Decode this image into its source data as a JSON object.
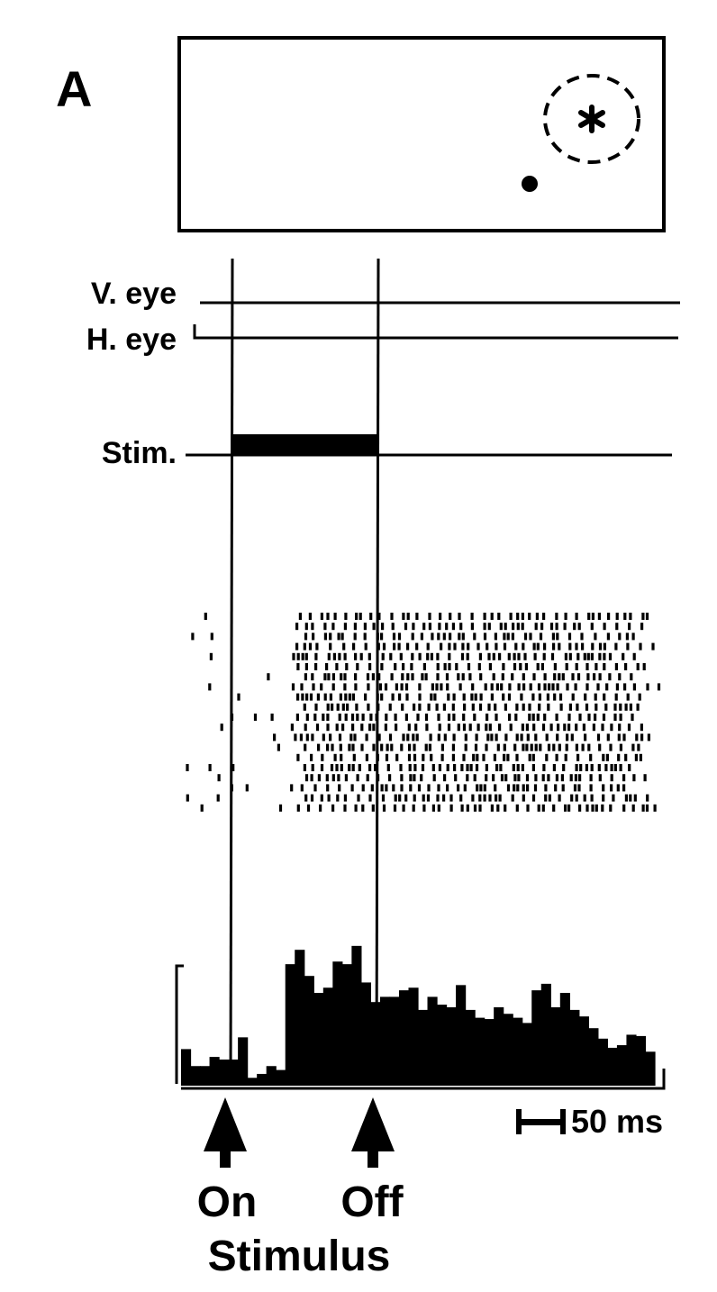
{
  "panel_label": "A",
  "traces": {
    "v_eye": "V. eye",
    "h_eye": "H. eye",
    "stim": "Stim."
  },
  "scale_bar": {
    "label": "50 ms"
  },
  "markers": {
    "on": "On",
    "off": "Off",
    "caption": "Stimulus"
  },
  "chart_data": {
    "type": "bar",
    "title": "",
    "xlabel": "",
    "ylabel": "",
    "raster_trials": 20,
    "histogram_bin_heights_relative": [
      0.28,
      0.15,
      0.15,
      0.22,
      0.2,
      0.2,
      0.37,
      0.06,
      0.09,
      0.15,
      0.12,
      0.93,
      1.04,
      0.84,
      0.71,
      0.75,
      0.95,
      0.93,
      1.07,
      0.79,
      0.64,
      0.68,
      0.68,
      0.73,
      0.75,
      0.58,
      0.68,
      0.62,
      0.6,
      0.77,
      0.58,
      0.52,
      0.51,
      0.6,
      0.55,
      0.52,
      0.48,
      0.73,
      0.78,
      0.6,
      0.71,
      0.58,
      0.53,
      0.44,
      0.36,
      0.29,
      0.31,
      0.39,
      0.38,
      0.26
    ]
  }
}
